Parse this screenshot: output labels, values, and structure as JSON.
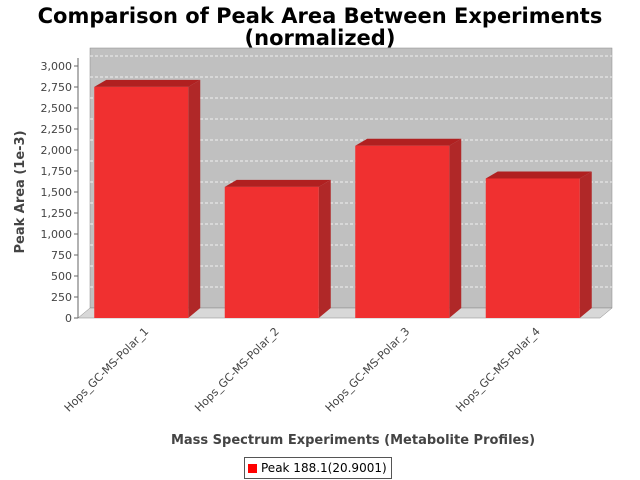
{
  "chart_data": {
    "type": "bar",
    "title_line1": "Comparison of Peak Area Between Experiments",
    "title_line2": "(normalized)",
    "xlabel": "Mass Spectrum Experiments (Metabolite Profiles)",
    "ylabel": "Peak Area (1e-3)",
    "categories": [
      "Hops_GC-MS-Polar_1",
      "Hops_GC-MS-Polar_2",
      "Hops_GC-MS-Polar_3",
      "Hops_GC-MS-Polar_4"
    ],
    "series": [
      {
        "name": "Peak 188.1(20.9001)",
        "values": [
          2870,
          1680,
          2170,
          1780
        ]
      }
    ],
    "ylim": [
      0,
      3000
    ],
    "yticks": [
      "0",
      "250",
      "500",
      "750",
      "1,000",
      "1,250",
      "1,500",
      "1,750",
      "2,000",
      "2,250",
      "2,500",
      "2,750",
      "3,000"
    ],
    "grid": true,
    "legend_position": "bottom",
    "colors": {
      "bar_front": "#f03030",
      "bar_top": "#b02020",
      "bar_side": "#b02828",
      "plot_bg": "#c0c0c0",
      "floor": "#d8d8d8"
    }
  }
}
